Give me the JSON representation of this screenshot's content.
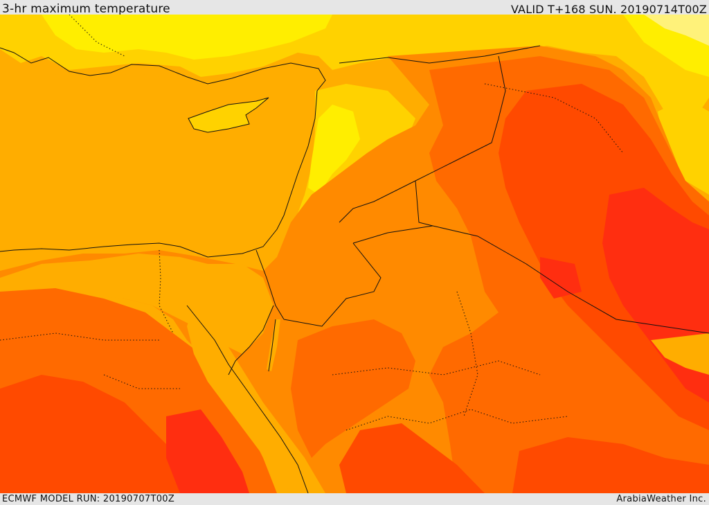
{
  "header": {
    "title": "3-hr maximum temperature",
    "valid": "VALID T+168 SUN. 20190714T00Z"
  },
  "footer": {
    "model_run": "ECMWF MODEL RUN: 20190707T00Z",
    "credit": "ArabiaWeather Inc."
  },
  "map": {
    "type": "filled temperature contour map",
    "palette": {
      "light_yellow": "#fff27a",
      "yellow": "#ffee00",
      "gold": "#ffd200",
      "amber": "#ffad00",
      "orange": "#ff8a00",
      "dark_orange": "#ff6a00",
      "red_orange": "#ff4a00",
      "red": "#ff2e10"
    },
    "coastline_color": "#111111",
    "border_style": "dotted"
  }
}
